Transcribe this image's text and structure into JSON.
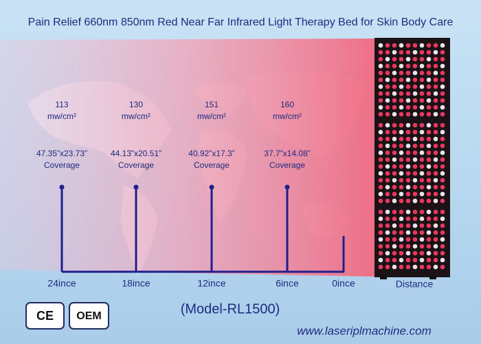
{
  "title": "Pain Relief  660nm 850nm Red Near Far Infrared Light Therapy Bed for Skin Body Care",
  "measurements": [
    {
      "irradiance": "113",
      "unit": "mw/cm²",
      "size": "47.35”x23.73”",
      "label": "Coverage"
    },
    {
      "irradiance": "130",
      "unit": "mw/cm²",
      "size": "44.13”x20.51”",
      "label": "Coverage"
    },
    {
      "irradiance": "151",
      "unit": "mw/cm²",
      "size": "40.92”x17.3”",
      "label": "Coverage"
    },
    {
      "irradiance": "160",
      "unit": "mw/cm²",
      "size": "37.7”x14.08”",
      "label": "Coverage"
    }
  ],
  "distances": [
    "24ince",
    "18ince",
    "12ince",
    "6ince",
    "0ince"
  ],
  "distance_label": "Distance",
  "model": "(Model-RL1500)",
  "badges": [
    "CE",
    "OEM"
  ],
  "website": "www.laseriplmachine.com"
}
